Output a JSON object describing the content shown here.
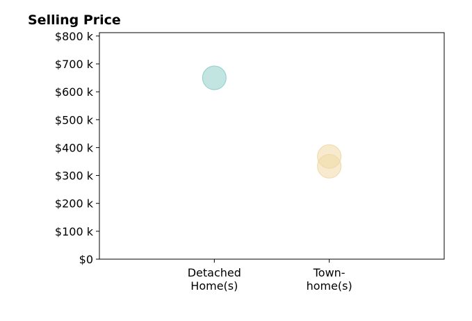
{
  "chart_data": {
    "type": "scatter",
    "title": "Selling Price",
    "xlabel": "",
    "ylabel": "",
    "categories": [
      [
        "Detached",
        "Home(s)"
      ],
      [
        "Town-",
        "home(s)"
      ]
    ],
    "y_tick_values": [
      0,
      100000,
      200000,
      300000,
      400000,
      500000,
      600000,
      700000,
      800000
    ],
    "y_tick_labels": [
      "$0",
      "$100 k",
      "$200 k",
      "$300 k",
      "$400 k",
      "$500 k",
      "$600 k",
      "$700 k",
      "$800 k"
    ],
    "ylim": [
      0,
      812000
    ],
    "xlim": [
      -1,
      2
    ],
    "grid": false,
    "legend": "none",
    "points": [
      {
        "category": 0,
        "value": 650000,
        "color": "#8fcfc8"
      },
      {
        "category": 1,
        "value": 368000,
        "color": "#f0d9a6"
      },
      {
        "category": 1,
        "value": 333000,
        "color": "#f0d9a6"
      }
    ]
  }
}
